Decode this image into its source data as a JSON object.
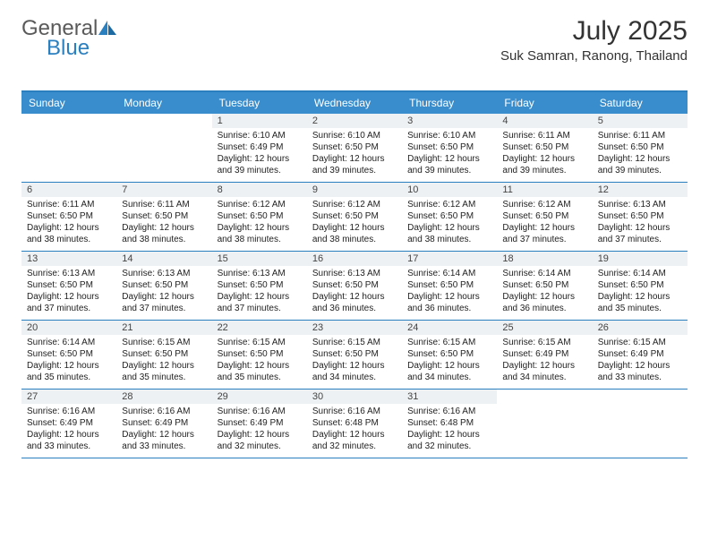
{
  "logo": {
    "text_general": "General",
    "text_blue": "Blue",
    "icon_color": "#2a7fbf"
  },
  "header": {
    "title": "July 2025",
    "location": "Suk Samran, Ranong, Thailand"
  },
  "colors": {
    "header_bar": "#3a8dcc",
    "border": "#2a7fbf",
    "daynum_bg": "#eef1f3",
    "text": "#222222",
    "logo_gray": "#5a5a5a"
  },
  "days": [
    "Sunday",
    "Monday",
    "Tuesday",
    "Wednesday",
    "Thursday",
    "Friday",
    "Saturday"
  ],
  "weeks": [
    [
      null,
      null,
      {
        "n": "1",
        "sr": "Sunrise: 6:10 AM",
        "ss": "Sunset: 6:49 PM",
        "dl1": "Daylight: 12 hours",
        "dl2": "and 39 minutes."
      },
      {
        "n": "2",
        "sr": "Sunrise: 6:10 AM",
        "ss": "Sunset: 6:50 PM",
        "dl1": "Daylight: 12 hours",
        "dl2": "and 39 minutes."
      },
      {
        "n": "3",
        "sr": "Sunrise: 6:10 AM",
        "ss": "Sunset: 6:50 PM",
        "dl1": "Daylight: 12 hours",
        "dl2": "and 39 minutes."
      },
      {
        "n": "4",
        "sr": "Sunrise: 6:11 AM",
        "ss": "Sunset: 6:50 PM",
        "dl1": "Daylight: 12 hours",
        "dl2": "and 39 minutes."
      },
      {
        "n": "5",
        "sr": "Sunrise: 6:11 AM",
        "ss": "Sunset: 6:50 PM",
        "dl1": "Daylight: 12 hours",
        "dl2": "and 39 minutes."
      }
    ],
    [
      {
        "n": "6",
        "sr": "Sunrise: 6:11 AM",
        "ss": "Sunset: 6:50 PM",
        "dl1": "Daylight: 12 hours",
        "dl2": "and 38 minutes."
      },
      {
        "n": "7",
        "sr": "Sunrise: 6:11 AM",
        "ss": "Sunset: 6:50 PM",
        "dl1": "Daylight: 12 hours",
        "dl2": "and 38 minutes."
      },
      {
        "n": "8",
        "sr": "Sunrise: 6:12 AM",
        "ss": "Sunset: 6:50 PM",
        "dl1": "Daylight: 12 hours",
        "dl2": "and 38 minutes."
      },
      {
        "n": "9",
        "sr": "Sunrise: 6:12 AM",
        "ss": "Sunset: 6:50 PM",
        "dl1": "Daylight: 12 hours",
        "dl2": "and 38 minutes."
      },
      {
        "n": "10",
        "sr": "Sunrise: 6:12 AM",
        "ss": "Sunset: 6:50 PM",
        "dl1": "Daylight: 12 hours",
        "dl2": "and 38 minutes."
      },
      {
        "n": "11",
        "sr": "Sunrise: 6:12 AM",
        "ss": "Sunset: 6:50 PM",
        "dl1": "Daylight: 12 hours",
        "dl2": "and 37 minutes."
      },
      {
        "n": "12",
        "sr": "Sunrise: 6:13 AM",
        "ss": "Sunset: 6:50 PM",
        "dl1": "Daylight: 12 hours",
        "dl2": "and 37 minutes."
      }
    ],
    [
      {
        "n": "13",
        "sr": "Sunrise: 6:13 AM",
        "ss": "Sunset: 6:50 PM",
        "dl1": "Daylight: 12 hours",
        "dl2": "and 37 minutes."
      },
      {
        "n": "14",
        "sr": "Sunrise: 6:13 AM",
        "ss": "Sunset: 6:50 PM",
        "dl1": "Daylight: 12 hours",
        "dl2": "and 37 minutes."
      },
      {
        "n": "15",
        "sr": "Sunrise: 6:13 AM",
        "ss": "Sunset: 6:50 PM",
        "dl1": "Daylight: 12 hours",
        "dl2": "and 37 minutes."
      },
      {
        "n": "16",
        "sr": "Sunrise: 6:13 AM",
        "ss": "Sunset: 6:50 PM",
        "dl1": "Daylight: 12 hours",
        "dl2": "and 36 minutes."
      },
      {
        "n": "17",
        "sr": "Sunrise: 6:14 AM",
        "ss": "Sunset: 6:50 PM",
        "dl1": "Daylight: 12 hours",
        "dl2": "and 36 minutes."
      },
      {
        "n": "18",
        "sr": "Sunrise: 6:14 AM",
        "ss": "Sunset: 6:50 PM",
        "dl1": "Daylight: 12 hours",
        "dl2": "and 36 minutes."
      },
      {
        "n": "19",
        "sr": "Sunrise: 6:14 AM",
        "ss": "Sunset: 6:50 PM",
        "dl1": "Daylight: 12 hours",
        "dl2": "and 35 minutes."
      }
    ],
    [
      {
        "n": "20",
        "sr": "Sunrise: 6:14 AM",
        "ss": "Sunset: 6:50 PM",
        "dl1": "Daylight: 12 hours",
        "dl2": "and 35 minutes."
      },
      {
        "n": "21",
        "sr": "Sunrise: 6:15 AM",
        "ss": "Sunset: 6:50 PM",
        "dl1": "Daylight: 12 hours",
        "dl2": "and 35 minutes."
      },
      {
        "n": "22",
        "sr": "Sunrise: 6:15 AM",
        "ss": "Sunset: 6:50 PM",
        "dl1": "Daylight: 12 hours",
        "dl2": "and 35 minutes."
      },
      {
        "n": "23",
        "sr": "Sunrise: 6:15 AM",
        "ss": "Sunset: 6:50 PM",
        "dl1": "Daylight: 12 hours",
        "dl2": "and 34 minutes."
      },
      {
        "n": "24",
        "sr": "Sunrise: 6:15 AM",
        "ss": "Sunset: 6:50 PM",
        "dl1": "Daylight: 12 hours",
        "dl2": "and 34 minutes."
      },
      {
        "n": "25",
        "sr": "Sunrise: 6:15 AM",
        "ss": "Sunset: 6:49 PM",
        "dl1": "Daylight: 12 hours",
        "dl2": "and 34 minutes."
      },
      {
        "n": "26",
        "sr": "Sunrise: 6:15 AM",
        "ss": "Sunset: 6:49 PM",
        "dl1": "Daylight: 12 hours",
        "dl2": "and 33 minutes."
      }
    ],
    [
      {
        "n": "27",
        "sr": "Sunrise: 6:16 AM",
        "ss": "Sunset: 6:49 PM",
        "dl1": "Daylight: 12 hours",
        "dl2": "and 33 minutes."
      },
      {
        "n": "28",
        "sr": "Sunrise: 6:16 AM",
        "ss": "Sunset: 6:49 PM",
        "dl1": "Daylight: 12 hours",
        "dl2": "and 33 minutes."
      },
      {
        "n": "29",
        "sr": "Sunrise: 6:16 AM",
        "ss": "Sunset: 6:49 PM",
        "dl1": "Daylight: 12 hours",
        "dl2": "and 32 minutes."
      },
      {
        "n": "30",
        "sr": "Sunrise: 6:16 AM",
        "ss": "Sunset: 6:48 PM",
        "dl1": "Daylight: 12 hours",
        "dl2": "and 32 minutes."
      },
      {
        "n": "31",
        "sr": "Sunrise: 6:16 AM",
        "ss": "Sunset: 6:48 PM",
        "dl1": "Daylight: 12 hours",
        "dl2": "and 32 minutes."
      },
      null,
      null
    ]
  ]
}
